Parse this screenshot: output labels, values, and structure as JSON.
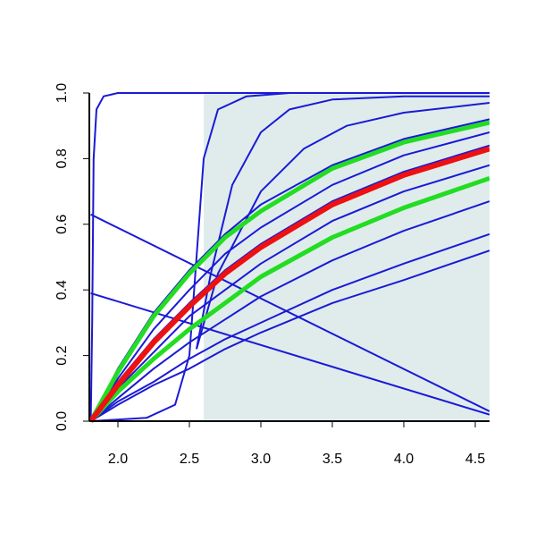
{
  "chart_data": {
    "type": "line",
    "xlim": [
      1.8,
      4.6
    ],
    "ylim": [
      0,
      1
    ],
    "xticks": [
      {
        "value": 2,
        "label": "2.0"
      },
      2.5,
      {
        "value": 3,
        "label": "3.0"
      },
      3.5,
      {
        "value": 4,
        "label": "4.0"
      },
      4.5
    ],
    "yticks": [
      {
        "value": 0,
        "label": "0.0"
      },
      0.2,
      0.4,
      0.6,
      0.8,
      {
        "value": 1,
        "label": "1.0"
      }
    ],
    "shade": {
      "from": 2.6,
      "color": "#e0ecec"
    },
    "series": [
      {
        "color": "#1a1ad6",
        "width": 2,
        "x": [
          1.81,
          2.0,
          2.25,
          2.5,
          2.75,
          3.0,
          3.5,
          4.0,
          4.6
        ],
        "values": [
          0,
          0.16,
          0.33,
          0.46,
          0.57,
          0.66,
          0.78,
          0.86,
          0.92
        ]
      },
      {
        "color": "#1a1ad6",
        "width": 2,
        "x": [
          1.81,
          2.0,
          2.25,
          2.5,
          2.75,
          3.0,
          3.5,
          4.0,
          4.6
        ],
        "values": [
          0,
          0.13,
          0.28,
          0.4,
          0.51,
          0.59,
          0.72,
          0.81,
          0.88
        ]
      },
      {
        "color": "#1a1ad6",
        "width": 2,
        "x": [
          1.81,
          2.0,
          2.25,
          2.5,
          2.75,
          3.0,
          3.5,
          4.0,
          4.6
        ],
        "values": [
          0,
          0.12,
          0.25,
          0.36,
          0.46,
          0.54,
          0.67,
          0.76,
          0.84
        ]
      },
      {
        "color": "#1a1ad6",
        "width": 2,
        "x": [
          1.81,
          2.0,
          2.25,
          2.5,
          2.75,
          3.0,
          3.5,
          4.0,
          4.6
        ],
        "values": [
          0,
          0.1,
          0.21,
          0.32,
          0.4,
          0.48,
          0.61,
          0.7,
          0.78
        ]
      },
      {
        "color": "#1a1ad6",
        "width": 2,
        "x": [
          1.81,
          2.0,
          2.25,
          2.5,
          2.75,
          3.0,
          3.5,
          4.0,
          4.6
        ],
        "values": [
          0,
          0.07,
          0.16,
          0.24,
          0.31,
          0.38,
          0.49,
          0.58,
          0.67
        ]
      },
      {
        "color": "#1a1ad6",
        "width": 2,
        "x": [
          1.81,
          2.0,
          2.25,
          2.5,
          2.75,
          3.0,
          3.5,
          4.0,
          4.6
        ],
        "values": [
          0,
          0.06,
          0.12,
          0.19,
          0.25,
          0.3,
          0.4,
          0.48,
          0.57
        ]
      },
      {
        "color": "#1a1ad6",
        "width": 2,
        "x": [
          1.81,
          2.0,
          2.25,
          2.5,
          2.75,
          3.0,
          3.5,
          4.0,
          4.6
        ],
        "values": [
          0,
          0.05,
          0.11,
          0.16,
          0.22,
          0.27,
          0.36,
          0.43,
          0.52
        ]
      },
      {
        "color": "#1a1ad6",
        "width": 2,
        "x": [
          1.81,
          2.2,
          2.4,
          2.5,
          2.55,
          2.6,
          2.7,
          2.9,
          3.2,
          4.6
        ],
        "values": [
          0,
          0.01,
          0.05,
          0.2,
          0.5,
          0.8,
          0.95,
          0.99,
          1,
          1
        ]
      },
      {
        "color": "#1a1ad6",
        "width": 2,
        "x": [
          2.55,
          2.65,
          2.8,
          3.0,
          3.2,
          3.5,
          4.0,
          4.6
        ],
        "values": [
          0.22,
          0.45,
          0.72,
          0.88,
          0.95,
          0.98,
          0.99,
          0.99
        ]
      },
      {
        "color": "#1a1ad6",
        "width": 2,
        "x": [
          2.55,
          2.7,
          3.0,
          3.3,
          3.6,
          4.0,
          4.6
        ],
        "values": [
          0.22,
          0.45,
          0.7,
          0.83,
          0.9,
          0.94,
          0.97
        ]
      },
      {
        "color": "#1a1ad6",
        "width": 2,
        "x": [
          1.81,
          1.82,
          1.83,
          1.85,
          1.9,
          2.0,
          2.6,
          4.6
        ],
        "values": [
          0,
          0.3,
          0.8,
          0.95,
          0.99,
          1,
          1,
          1
        ]
      },
      {
        "color": "#1a1ad6",
        "width": 2,
        "x": [
          1.81,
          4.6
        ],
        "values": [
          0.63,
          0.03
        ]
      },
      {
        "color": "#1a1ad6",
        "width": 2,
        "x": [
          1.81,
          4.6
        ],
        "values": [
          0.39,
          0.02
        ]
      },
      {
        "color": "#22dd22",
        "width": 5,
        "x": [
          1.81,
          2.0,
          2.25,
          2.5,
          2.75,
          3.0,
          3.5,
          4.0,
          4.6
        ],
        "values": [
          0,
          0.15,
          0.32,
          0.45,
          0.56,
          0.64,
          0.77,
          0.85,
          0.91
        ]
      },
      {
        "color": "#22dd22",
        "width": 5,
        "x": [
          1.81,
          2.0,
          2.25,
          2.5,
          2.75,
          3.0,
          3.5,
          4.0,
          4.6
        ],
        "values": [
          0,
          0.09,
          0.19,
          0.28,
          0.36,
          0.44,
          0.56,
          0.65,
          0.74
        ]
      },
      {
        "color": "#ee1111",
        "width": 6,
        "x": [
          1.81,
          2.0,
          2.25,
          2.5,
          2.75,
          3.0,
          3.5,
          4.0,
          4.6
        ],
        "values": [
          0,
          0.11,
          0.24,
          0.35,
          0.45,
          0.53,
          0.66,
          0.75,
          0.83
        ]
      }
    ]
  }
}
